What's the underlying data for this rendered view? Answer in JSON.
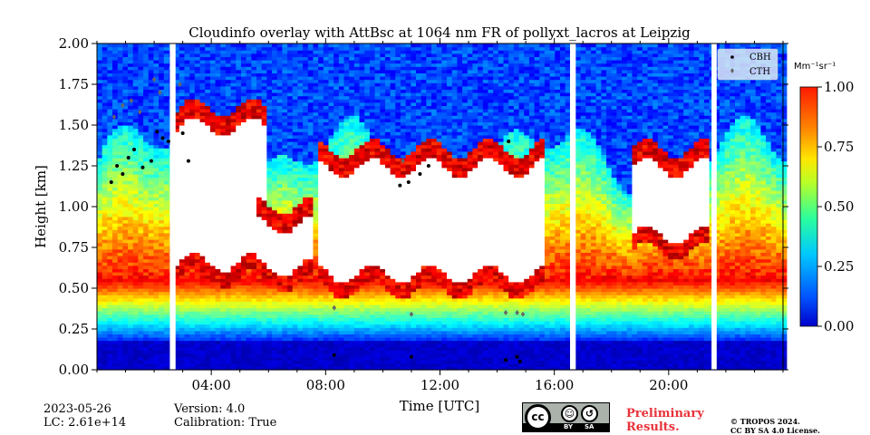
{
  "chart_data": {
    "type": "heatmap",
    "title": "Cloudinfo overlay with AttBsc at 1064 nm FR of pollyxt_lacros at Leipzig",
    "xlabel": "Time [UTC]",
    "ylabel": "Height [km]",
    "x_ticks": [
      "04:00",
      "08:00",
      "12:00",
      "16:00",
      "20:00"
    ],
    "x_tick_hours": [
      4,
      8,
      12,
      16,
      20
    ],
    "xlim_hours": [
      0.0,
      24.0
    ],
    "y_ticks": [
      "0.00",
      "0.25",
      "0.50",
      "0.75",
      "1.00",
      "1.25",
      "1.50",
      "1.75",
      "2.00"
    ],
    "ylim": [
      0.0,
      2.0
    ],
    "colorbar": {
      "label": "Mm⁻¹sr⁻¹",
      "ticks": [
        "0.00",
        "0.25",
        "0.50",
        "0.75",
        "1.00"
      ],
      "range": [
        0.0,
        1.0
      ],
      "colormap": "jet"
    },
    "legend": {
      "position": "top-right",
      "entries": [
        {
          "label": "CBH",
          "marker": "dot",
          "color": "#000000"
        },
        {
          "label": "CTH",
          "marker": "diamond",
          "color": "#666666"
        }
      ]
    },
    "gaps_hours": [
      [
        2.55,
        2.75
      ],
      [
        16.55,
        16.75
      ],
      [
        21.5,
        21.68
      ]
    ],
    "profile": {
      "surface_value": 0.05,
      "layer_top_km": 0.55,
      "aerosol_top_km": 1.3
    },
    "clouds": [
      {
        "t": [
          2.7,
          5.9
        ],
        "base": 0.55,
        "top": 1.6
      },
      {
        "t": [
          5.4,
          7.5
        ],
        "base": 0.52,
        "top": 1.0
      },
      {
        "t": [
          7.6,
          15.5
        ],
        "base": 0.48,
        "top": 1.35
      },
      {
        "t": [
          18.6,
          21.4
        ],
        "base": 0.72,
        "top": 1.35
      }
    ],
    "cbh_points": [
      [
        0.5,
        1.15
      ],
      [
        0.7,
        1.25
      ],
      [
        0.9,
        1.2
      ],
      [
        1.1,
        1.3
      ],
      [
        1.3,
        1.35
      ],
      [
        1.6,
        1.24
      ],
      [
        1.9,
        1.28
      ],
      [
        2.1,
        1.46
      ],
      [
        2.3,
        1.42
      ],
      [
        2.5,
        1.4
      ],
      [
        3.0,
        1.45
      ],
      [
        3.2,
        1.28
      ],
      [
        8.3,
        0.09
      ],
      [
        10.6,
        1.13
      ],
      [
        10.9,
        1.15
      ],
      [
        11.0,
        0.08
      ],
      [
        11.3,
        1.2
      ],
      [
        11.6,
        1.25
      ],
      [
        14.3,
        0.06
      ],
      [
        14.4,
        1.4
      ],
      [
        14.7,
        0.08
      ],
      [
        14.8,
        0.05
      ]
    ],
    "cth_points": [
      [
        0.6,
        1.55
      ],
      [
        0.9,
        1.62
      ],
      [
        1.2,
        1.65
      ],
      [
        1.5,
        1.58
      ],
      [
        2.0,
        1.78
      ],
      [
        2.2,
        1.7
      ],
      [
        2.9,
        1.75
      ],
      [
        8.3,
        0.38
      ],
      [
        10.7,
        1.28
      ],
      [
        11.0,
        0.34
      ],
      [
        14.3,
        0.35
      ],
      [
        14.7,
        0.35
      ],
      [
        14.9,
        0.34
      ]
    ]
  },
  "footer": {
    "date": "2023-05-26",
    "lc": "LC: 2.61e+14",
    "version": "Version: 4.0",
    "calibration": "Calibration: True",
    "preliminary_1": "Preliminary",
    "preliminary_2": "Results.",
    "copyright_1": "© TROPOS 2024.",
    "copyright_2": "CC BY SA 4.0 License.",
    "cc_badge": [
      "cc",
      "BY",
      "SA"
    ]
  }
}
